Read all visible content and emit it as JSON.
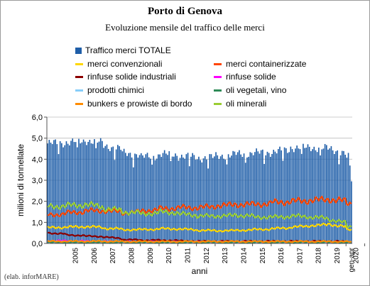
{
  "chart_data": {
    "type": "bar",
    "title": "Porto di Genova",
    "subtitle": "Evoluzione mensile del traffico delle merci",
    "xlabel": "anni",
    "ylabel": "milioni di tonnellate",
    "ylim": [
      0,
      6
    ],
    "y_ticks": [
      "0,0",
      "1,0",
      "2,0",
      "3,0",
      "4,0",
      "5,0",
      "6,0"
    ],
    "x_ticks": [
      "2005",
      "2006",
      "2007",
      "2008",
      "2009",
      "2010",
      "2011",
      "2012",
      "2013",
      "2014",
      "2015",
      "2016",
      "2017",
      "2018",
      "2019",
      "2020",
      "gen-apr"
    ],
    "grid": true,
    "legend_position": "top",
    "source": "(elab. inforMARE)",
    "months_start_year": 2004,
    "series": [
      {
        "name": "Traffico merci TOTALE",
        "type": "bar",
        "color": "#1f5ea8",
        "annual_values": [
          4.75,
          4.8,
          4.9,
          4.65,
          4.3,
          4.1,
          4.25,
          4.15,
          4.05,
          4.15,
          4.25,
          4.3,
          4.35,
          4.55,
          4.55,
          4.5,
          4.05
        ],
        "end_values": [
          4.3,
          3.7,
          2.95
        ]
      },
      {
        "name": "merci convenzionali",
        "type": "line",
        "color": "#ffd700",
        "annual_values": [
          0.75,
          0.78,
          0.8,
          0.72,
          0.65,
          0.66,
          0.7,
          0.68,
          0.62,
          0.6,
          0.62,
          0.66,
          0.7,
          0.78,
          0.85,
          0.92,
          0.65
        ]
      },
      {
        "name": "merci containerizzate",
        "type": "line",
        "color": "#ff4500",
        "annual_values": [
          1.35,
          1.45,
          1.55,
          1.55,
          1.45,
          1.55,
          1.65,
          1.7,
          1.7,
          1.8,
          1.85,
          1.85,
          1.95,
          2.0,
          2.05,
          2.1,
          1.9
        ]
      },
      {
        "name": "rinfuse solide industriali",
        "type": "line",
        "color": "#8b0000",
        "annual_values": [
          0.5,
          0.4,
          0.35,
          0.3,
          0.18,
          0.15,
          0.15,
          0.12,
          0.1,
          0.1,
          0.1,
          0.1,
          0.1,
          0.1,
          0.1,
          0.1,
          0.08
        ]
      },
      {
        "name": "rinfuse solide",
        "type": "line",
        "color": "#ff00ff",
        "annual_values": [
          0.12,
          0.12,
          0.1,
          0.09,
          0.08,
          0.08,
          0.08,
          0.07,
          0.07,
          0.07,
          0.07,
          0.06,
          0.06,
          0.06,
          0.06,
          0.06,
          0.05
        ]
      },
      {
        "name": "prodotti chimici",
        "type": "line",
        "color": "#87cefa",
        "annual_values": [
          0.07,
          0.07,
          0.07,
          0.07,
          0.06,
          0.06,
          0.06,
          0.06,
          0.06,
          0.06,
          0.06,
          0.06,
          0.06,
          0.06,
          0.06,
          0.06,
          0.05
        ]
      },
      {
        "name": "oli vegetali, vino",
        "type": "line",
        "color": "#2e8b57",
        "annual_values": [
          0.05,
          0.05,
          0.05,
          0.05,
          0.05,
          0.05,
          0.05,
          0.05,
          0.05,
          0.05,
          0.05,
          0.05,
          0.05,
          0.05,
          0.05,
          0.05,
          0.04
        ]
      },
      {
        "name": "bunkers e prowiste di bordo",
        "type": "line",
        "color": "#ff8c00",
        "annual_values": [
          0.1,
          0.1,
          0.1,
          0.1,
          0.09,
          0.09,
          0.09,
          0.09,
          0.09,
          0.09,
          0.09,
          0.09,
          0.09,
          0.09,
          0.09,
          0.09,
          0.08
        ]
      },
      {
        "name": "oli minerali",
        "type": "line",
        "color": "#9acd32",
        "annual_values": [
          1.75,
          1.8,
          1.85,
          1.65,
          1.5,
          1.4,
          1.5,
          1.4,
          1.3,
          1.3,
          1.35,
          1.25,
          1.25,
          1.3,
          1.25,
          1.15,
          0.8
        ]
      }
    ]
  }
}
